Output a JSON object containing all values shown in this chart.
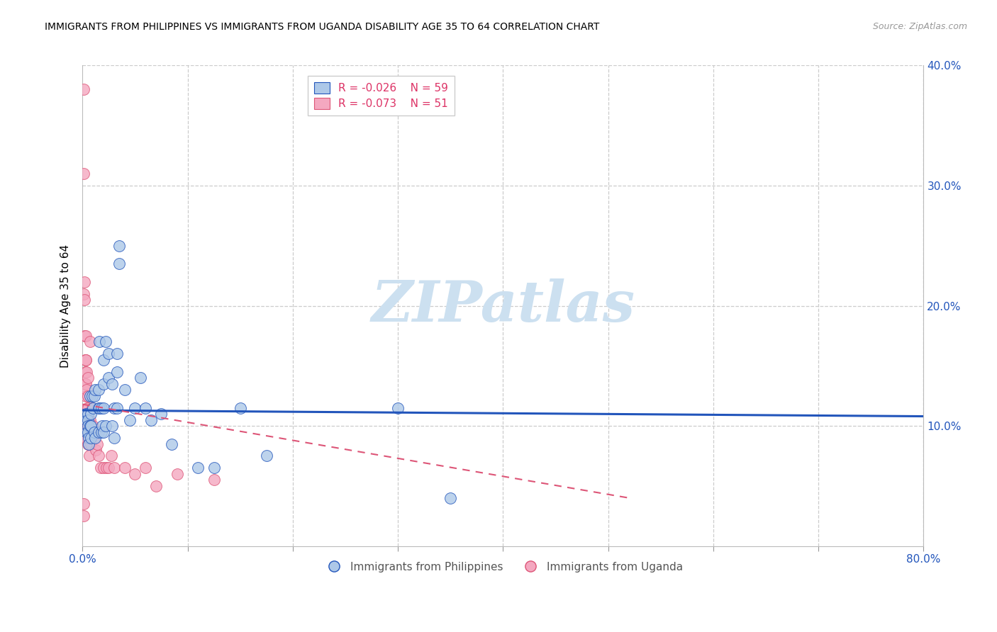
{
  "title": "IMMIGRANTS FROM PHILIPPINES VS IMMIGRANTS FROM UGANDA DISABILITY AGE 35 TO 64 CORRELATION CHART",
  "source": "Source: ZipAtlas.com",
  "ylabel": "Disability Age 35 to 64",
  "xlim": [
    0.0,
    0.8
  ],
  "ylim": [
    0.0,
    0.4
  ],
  "legend_blue_R": "R = -0.026",
  "legend_blue_N": "N = 59",
  "legend_pink_R": "R = -0.073",
  "legend_pink_N": "N = 51",
  "color_blue": "#adc8e8",
  "color_pink": "#f4a8c0",
  "color_blue_line": "#2255bb",
  "color_pink_line": "#dd5577",
  "watermark_color": "#cce0f0",
  "watermark": "ZIPatlas",
  "blue_line_x": [
    0.0,
    0.8
  ],
  "blue_line_y": [
    0.113,
    0.108
  ],
  "pink_line_x": [
    0.0,
    0.52
  ],
  "pink_line_y": [
    0.118,
    0.04
  ],
  "blue_x": [
    0.003,
    0.004,
    0.004,
    0.005,
    0.005,
    0.005,
    0.005,
    0.006,
    0.006,
    0.007,
    0.007,
    0.008,
    0.008,
    0.008,
    0.009,
    0.01,
    0.011,
    0.011,
    0.012,
    0.012,
    0.015,
    0.015,
    0.015,
    0.016,
    0.016,
    0.018,
    0.018,
    0.019,
    0.02,
    0.02,
    0.02,
    0.02,
    0.022,
    0.022,
    0.025,
    0.025,
    0.028,
    0.028,
    0.03,
    0.03,
    0.033,
    0.033,
    0.033,
    0.035,
    0.035,
    0.04,
    0.045,
    0.05,
    0.055,
    0.06,
    0.065,
    0.075,
    0.085,
    0.11,
    0.125,
    0.15,
    0.175,
    0.3,
    0.35
  ],
  "blue_y": [
    0.11,
    0.105,
    0.095,
    0.11,
    0.105,
    0.1,
    0.095,
    0.09,
    0.085,
    0.125,
    0.1,
    0.11,
    0.1,
    0.09,
    0.125,
    0.115,
    0.125,
    0.095,
    0.13,
    0.09,
    0.13,
    0.115,
    0.095,
    0.17,
    0.115,
    0.115,
    0.095,
    0.1,
    0.155,
    0.135,
    0.115,
    0.095,
    0.17,
    0.1,
    0.16,
    0.14,
    0.135,
    0.1,
    0.115,
    0.09,
    0.16,
    0.145,
    0.115,
    0.25,
    0.235,
    0.13,
    0.105,
    0.115,
    0.14,
    0.115,
    0.105,
    0.11,
    0.085,
    0.065,
    0.065,
    0.115,
    0.075,
    0.115,
    0.04
  ],
  "pink_x": [
    0.001,
    0.001,
    0.0015,
    0.0015,
    0.0015,
    0.002,
    0.002,
    0.002,
    0.0025,
    0.0025,
    0.0025,
    0.0025,
    0.003,
    0.003,
    0.003,
    0.0035,
    0.0035,
    0.0035,
    0.0035,
    0.004,
    0.004,
    0.004,
    0.0045,
    0.0045,
    0.005,
    0.005,
    0.005,
    0.0055,
    0.006,
    0.0065,
    0.007,
    0.0075,
    0.008,
    0.009,
    0.01,
    0.011,
    0.0125,
    0.014,
    0.015,
    0.0175,
    0.02,
    0.0225,
    0.025,
    0.0275,
    0.03,
    0.04,
    0.05,
    0.06,
    0.07,
    0.09,
    0.125
  ],
  "pink_y": [
    0.035,
    0.025,
    0.38,
    0.31,
    0.21,
    0.22,
    0.205,
    0.175,
    0.155,
    0.145,
    0.135,
    0.09,
    0.175,
    0.155,
    0.105,
    0.155,
    0.135,
    0.125,
    0.1,
    0.145,
    0.13,
    0.105,
    0.115,
    0.095,
    0.14,
    0.115,
    0.085,
    0.125,
    0.1,
    0.075,
    0.17,
    0.105,
    0.085,
    0.115,
    0.1,
    0.095,
    0.08,
    0.085,
    0.075,
    0.065,
    0.065,
    0.065,
    0.065,
    0.075,
    0.065,
    0.065,
    0.06,
    0.065,
    0.05,
    0.06,
    0.055
  ]
}
